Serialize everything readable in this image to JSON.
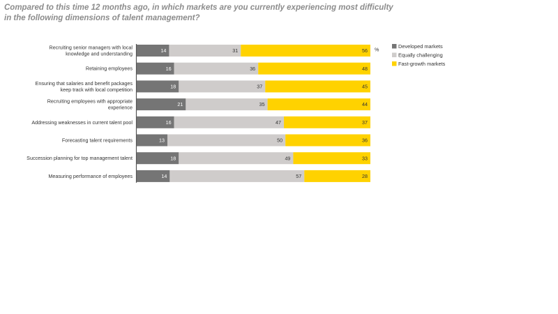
{
  "colors": {
    "developed": "#757575",
    "equally": "#cfcccb",
    "fast_growth": "#ffd200",
    "axis": "#555555"
  },
  "chart_data": {
    "type": "bar",
    "orientation": "horizontal",
    "stacked": true,
    "title": "Compared to this time 12 months ago, in which markets are you currently experiencing most difficulty in the following dimensions of talent management?",
    "unit": "%",
    "xlim": [
      0,
      100
    ],
    "legend_position": "right",
    "categories": [
      [
        "Recruiting senior managers with local",
        "knowledge and understanding"
      ],
      [
        "Retaining employees"
      ],
      [
        "Ensuring that salaries and benefit packages",
        "keep track with local competition"
      ],
      [
        "Recruiting employees with appropriate",
        "experience"
      ],
      [
        "Addressing weaknesses in current talent pool"
      ],
      [
        "Forecasting talent requirements"
      ],
      [
        "Succession planning for top management talent"
      ],
      [
        "Measuring performance of employees"
      ]
    ],
    "series": [
      {
        "name": "Developed markets",
        "color": "#757575",
        "values": [
          14,
          16,
          18,
          21,
          16,
          13,
          18,
          14
        ]
      },
      {
        "name": "Equally challenging",
        "color": "#cfcccb",
        "values": [
          31,
          36,
          37,
          35,
          47,
          50,
          49,
          57
        ]
      },
      {
        "name": "Fast-growth markets",
        "color": "#ffd200",
        "values": [
          56,
          48,
          45,
          44,
          37,
          36,
          33,
          28
        ]
      }
    ]
  }
}
